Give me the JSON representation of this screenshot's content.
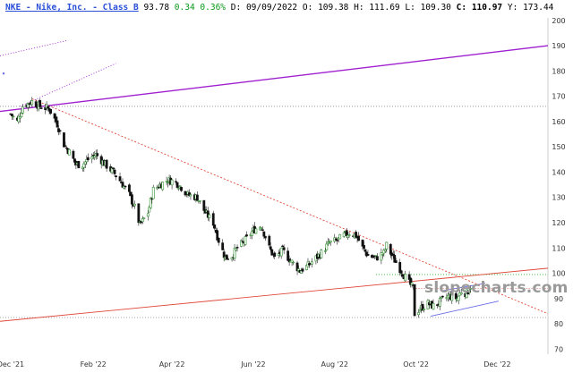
{
  "header": {
    "symbol": "NKE - Nike, Inc. - Class B",
    "last": "93.78",
    "change": "0.34",
    "change_pct": "0.36%",
    "date_label": "D:",
    "date": "09/09/2022",
    "open_label": "O:",
    "open": "109.38",
    "high_label": "H:",
    "high": "111.69",
    "low_label": "L:",
    "low": "109.30",
    "close_label": "C:",
    "close": "110.97",
    "y_label": "Y:",
    "y": "173.44"
  },
  "watermark": "slopecharts.com",
  "colors": {
    "up_candle": "#2f8f2f",
    "down_candle": "#111111",
    "gap_candle": "#2b2bff",
    "trend_red": "#e0483a",
    "trend_purple": "#a020d0",
    "channel_blue": "#6a6ae8",
    "ref_gray": "#888888",
    "ref_green": "#22aa22"
  },
  "chart_data": {
    "type": "candlestick",
    "y_axis": {
      "ticks": [
        70,
        80,
        90,
        100,
        110,
        120,
        130,
        140,
        150,
        160,
        170,
        180,
        190,
        200
      ],
      "range": [
        68,
        201
      ]
    },
    "x_axis": {
      "labels": [
        "Dec '21",
        "Feb '22",
        "Apr '22",
        "Jun '22",
        "Aug '22",
        "Oct '22",
        "Dec '22"
      ],
      "dates": [
        "2021-12-01",
        "2022-02-01",
        "2022-04-01",
        "2022-06-01",
        "2022-08-01",
        "2022-10-01",
        "2022-12-01"
      ],
      "range": [
        "2021-11-23",
        "2023-01-08"
      ]
    },
    "series": [
      {
        "close_anchors": [
          [
            "2021-12-01",
            163
          ],
          [
            "2021-12-06",
            160
          ],
          [
            "2021-12-10",
            166
          ],
          [
            "2021-12-17",
            168
          ],
          [
            "2021-12-23",
            166
          ],
          [
            "2021-12-30",
            165
          ],
          [
            "2022-01-05",
            159
          ],
          [
            "2022-01-10",
            151
          ],
          [
            "2022-01-14",
            148
          ],
          [
            "2022-01-19",
            143
          ],
          [
            "2022-01-24",
            143
          ],
          [
            "2022-01-28",
            145
          ],
          [
            "2022-02-03",
            147
          ],
          [
            "2022-02-10",
            143
          ],
          [
            "2022-02-16",
            140
          ],
          [
            "2022-02-22",
            136
          ],
          [
            "2022-02-28",
            131
          ],
          [
            "2022-03-04",
            126
          ],
          [
            "2022-03-08",
            119
          ],
          [
            "2022-03-14",
            124
          ],
          [
            "2022-03-18",
            133
          ],
          [
            "2022-03-23",
            135
          ],
          [
            "2022-03-29",
            137
          ],
          [
            "2022-04-04",
            136
          ],
          [
            "2022-04-08",
            134
          ],
          [
            "2022-04-13",
            131
          ],
          [
            "2022-04-20",
            130
          ],
          [
            "2022-04-26",
            124
          ],
          [
            "2022-05-02",
            120
          ],
          [
            "2022-05-06",
            113
          ],
          [
            "2022-05-11",
            106
          ],
          [
            "2022-05-16",
            107
          ],
          [
            "2022-05-20",
            110
          ],
          [
            "2022-05-26",
            113
          ],
          [
            "2022-06-01",
            117
          ],
          [
            "2022-06-07",
            119
          ],
          [
            "2022-06-13",
            110
          ],
          [
            "2022-06-17",
            106
          ],
          [
            "2022-06-23",
            109
          ],
          [
            "2022-06-29",
            105
          ],
          [
            "2022-07-06",
            101
          ],
          [
            "2022-07-12",
            103
          ],
          [
            "2022-07-18",
            106
          ],
          [
            "2022-07-22",
            108
          ],
          [
            "2022-07-28",
            112
          ],
          [
            "2022-08-03",
            113
          ],
          [
            "2022-08-08",
            115
          ],
          [
            "2022-08-12",
            116
          ],
          [
            "2022-08-17",
            115
          ],
          [
            "2022-08-22",
            110
          ],
          [
            "2022-08-26",
            107
          ],
          [
            "2022-09-01",
            106
          ],
          [
            "2022-09-07",
            108
          ],
          [
            "2022-09-09",
            111
          ],
          [
            "2022-09-14",
            106
          ],
          [
            "2022-09-20",
            101
          ],
          [
            "2022-09-26",
            96
          ],
          [
            "2022-09-29",
            94
          ],
          [
            "2022-09-30",
            84
          ],
          [
            "2022-10-04",
            86
          ],
          [
            "2022-10-10",
            88
          ],
          [
            "2022-10-14",
            87
          ],
          [
            "2022-10-20",
            89
          ],
          [
            "2022-10-26",
            91
          ],
          [
            "2022-11-01",
            90
          ],
          [
            "2022-11-04",
            93
          ],
          [
            "2022-11-08",
            92
          ],
          [
            "2022-11-11",
            95
          ]
        ]
      }
    ],
    "trendlines": [
      {
        "name": "descending",
        "color": "red",
        "style": "dashed",
        "from": [
          "2021-12-17",
          169
        ],
        "to": [
          "2023-01-08",
          84
        ]
      },
      {
        "name": "rising",
        "color": "red",
        "style": "solid",
        "from": [
          "2021-11-23",
          81
        ],
        "to": [
          "2023-01-08",
          102
        ]
      },
      {
        "name": "upper-purple",
        "color": "purple",
        "style": "solid",
        "from": [
          "2021-11-23",
          164
        ],
        "to": [
          "2023-01-08",
          190
        ]
      },
      {
        "name": "purple-fan-1",
        "color": "purple",
        "style": "dotted",
        "from": [
          "2021-11-23",
          186
        ],
        "to": [
          "2022-01-12",
          192
        ]
      },
      {
        "name": "purple-fan-2",
        "color": "purple",
        "style": "dotted",
        "from": [
          "2021-12-08",
          166
        ],
        "to": [
          "2022-02-18",
          183
        ]
      },
      {
        "name": "channel-top",
        "color": "blue",
        "style": "solid",
        "from": [
          "2022-10-20",
          93
        ],
        "to": [
          "2022-11-22",
          96
        ]
      },
      {
        "name": "channel-bottom",
        "color": "blue",
        "style": "solid",
        "from": [
          "2022-10-12",
          83
        ],
        "to": [
          "2022-12-02",
          89
        ]
      }
    ],
    "reference_lines": [
      {
        "value": 166,
        "color": "gray",
        "style": "dotted"
      },
      {
        "value": 99.5,
        "color": "green",
        "style": "dotted",
        "from": "2022-09-01"
      },
      {
        "value": 94,
        "color": "red",
        "style": "dotted",
        "from": "2022-10-01"
      },
      {
        "value": 82.5,
        "color": "gray",
        "style": "dotted"
      }
    ]
  }
}
